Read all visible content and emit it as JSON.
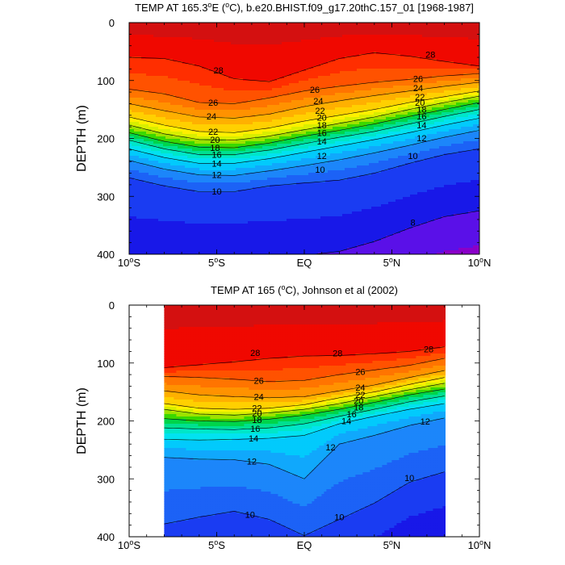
{
  "chart_data": [
    {
      "type": "contour",
      "title": "TEMP AT 165.3°E (°C), b.e20.BHIST.f09_g17.20thC.157_01 [1968-1987]",
      "title_parts": [
        "TEMP AT 165.3",
        "°",
        "E (",
        "°",
        "C), b.e20.BHIST.f09_g17.20thC.157_01 [1968-1987]"
      ],
      "ylabel": "DEPTH (m)",
      "xlim": [
        -10,
        10
      ],
      "ylim": [
        0,
        400
      ],
      "y_inverted": true,
      "x_ticks": [
        -10,
        -5,
        0,
        5,
        10
      ],
      "x_tick_labels": [
        "10°S",
        "5°S",
        "EQ",
        "5°N",
        "10°N"
      ],
      "y_ticks": [
        0,
        100,
        200,
        300,
        400
      ],
      "y_tick_labels": [
        "0",
        "100",
        "200",
        "300",
        "400"
      ],
      "data_extent_x": [
        -10,
        10
      ],
      "contour_levels": [
        7,
        8,
        9,
        10,
        11,
        12,
        13,
        14,
        15,
        16,
        17,
        18,
        19,
        20,
        21,
        22,
        23,
        24,
        25,
        26,
        27,
        28,
        29
      ],
      "isotherm_depths": {
        "x": [
          -10,
          -8,
          -6,
          -4,
          -2,
          0,
          2,
          4,
          6,
          8,
          10
        ],
        "levels": {
          "28": [
            60,
            62,
            75,
            97,
            102,
            82,
            62,
            52,
            58,
            67,
            75
          ],
          "26": [
            115,
            123,
            138,
            140,
            130,
            118,
            110,
            103,
            98,
            92,
            88
          ],
          "24": [
            140,
            152,
            163,
            165,
            158,
            145,
            135,
            126,
            118,
            110,
            103
          ],
          "22": [
            163,
            177,
            188,
            190,
            182,
            170,
            160,
            150,
            138,
            128,
            118
          ],
          "20": [
            177,
            192,
            202,
            203,
            196,
            185,
            174,
            163,
            150,
            138,
            127
          ],
          "18": [
            190,
            205,
            215,
            216,
            208,
            196,
            186,
            175,
            162,
            150,
            138
          ],
          "16": [
            203,
            218,
            228,
            228,
            220,
            209,
            198,
            188,
            175,
            162,
            150
          ],
          "14": [
            218,
            233,
            243,
            243,
            235,
            224,
            213,
            202,
            190,
            177,
            165
          ],
          "12": [
            238,
            253,
            263,
            264,
            256,
            247,
            237,
            225,
            212,
            198,
            186
          ],
          "10": [
            268,
            282,
            292,
            292,
            282,
            277,
            272,
            260,
            243,
            228,
            218
          ],
          "8": [
            402,
            402,
            402,
            402,
            402,
            402,
            395,
            378,
            355,
            335,
            325
          ]
        }
      },
      "contour_labels": [
        {
          "value": 28,
          "x": -4.9,
          "y": 82
        },
        {
          "value": 28,
          "x": 7.2,
          "y": 55
        },
        {
          "value": 26,
          "x": -5.2,
          "y": 138
        },
        {
          "value": 24,
          "x": -5.3,
          "y": 162
        },
        {
          "value": 22,
          "x": -5.2,
          "y": 188
        },
        {
          "value": 20,
          "x": -5.1,
          "y": 202
        },
        {
          "value": 18,
          "x": -5.1,
          "y": 216
        },
        {
          "value": 16,
          "x": -5.0,
          "y": 228
        },
        {
          "value": 14,
          "x": -5.0,
          "y": 243
        },
        {
          "value": 12,
          "x": -5.0,
          "y": 263
        },
        {
          "value": 10,
          "x": -5.0,
          "y": 291
        },
        {
          "value": 26,
          "x": 0.6,
          "y": 116
        },
        {
          "value": 24,
          "x": 0.8,
          "y": 135
        },
        {
          "value": 22,
          "x": 0.9,
          "y": 152
        },
        {
          "value": 20,
          "x": 1.0,
          "y": 164
        },
        {
          "value": 18,
          "x": 1.0,
          "y": 177
        },
        {
          "value": 16,
          "x": 1.0,
          "y": 190
        },
        {
          "value": 14,
          "x": 1.0,
          "y": 205
        },
        {
          "value": 12,
          "x": 1.0,
          "y": 230
        },
        {
          "value": 10,
          "x": 0.9,
          "y": 254
        },
        {
          "value": 26,
          "x": 6.5,
          "y": 97
        },
        {
          "value": 24,
          "x": 6.5,
          "y": 113
        },
        {
          "value": 22,
          "x": 6.6,
          "y": 128
        },
        {
          "value": 20,
          "x": 6.6,
          "y": 138
        },
        {
          "value": 18,
          "x": 6.7,
          "y": 150
        },
        {
          "value": 16,
          "x": 6.7,
          "y": 162
        },
        {
          "value": 14,
          "x": 6.7,
          "y": 177
        },
        {
          "value": 12,
          "x": 6.7,
          "y": 199
        },
        {
          "value": 10,
          "x": 6.2,
          "y": 230
        },
        {
          "value": 8,
          "x": 6.2,
          "y": 345
        }
      ]
    },
    {
      "type": "contour",
      "title": "TEMP AT 165 (°C), Johnson et al (2002)",
      "title_parts": [
        "TEMP AT 165 (",
        "°",
        "C), Johnson et al (2002)"
      ],
      "ylabel": "DEPTH (m)",
      "xlim": [
        -10,
        10
      ],
      "ylim": [
        0,
        400
      ],
      "y_inverted": true,
      "x_ticks": [
        -10,
        -5,
        0,
        5,
        10
      ],
      "x_tick_labels": [
        "10°S",
        "5°S",
        "EQ",
        "5°N",
        "10°N"
      ],
      "y_ticks": [
        0,
        100,
        200,
        300,
        400
      ],
      "y_tick_labels": [
        "0",
        "100",
        "200",
        "300",
        "400"
      ],
      "data_extent_x": [
        -8,
        8
      ],
      "contour_levels": [
        8,
        9,
        10,
        11,
        12,
        13,
        14,
        15,
        16,
        17,
        18,
        19,
        20,
        21,
        22,
        23,
        24,
        25,
        26,
        27,
        28,
        29
      ],
      "isotherm_depths": {
        "x": [
          -8,
          -6,
          -4,
          -2,
          0,
          2,
          4,
          6,
          8
        ],
        "levels": {
          "28": [
            108,
            103,
            98,
            92,
            88,
            87,
            84,
            80,
            72
          ],
          "26": [
            123,
            125,
            128,
            132,
            130,
            120,
            112,
            104,
            92
          ],
          "24": [
            148,
            155,
            158,
            160,
            158,
            148,
            138,
            125,
            113
          ],
          "22": [
            170,
            178,
            180,
            178,
            172,
            160,
            150,
            137,
            125
          ],
          "20": [
            180,
            188,
            190,
            186,
            180,
            170,
            158,
            146,
            135
          ],
          "18": [
            196,
            200,
            201,
            197,
            190,
            180,
            168,
            155,
            145
          ],
          "16": [
            212,
            214,
            215,
            212,
            205,
            192,
            180,
            167,
            157
          ],
          "14": [
            232,
            233,
            232,
            230,
            225,
            205,
            192,
            180,
            170
          ],
          "12": [
            263,
            266,
            267,
            275,
            300,
            240,
            225,
            208,
            195
          ],
          "10": [
            378,
            366,
            356,
            370,
            398,
            370,
            342,
            306,
            288
          ]
        }
      },
      "contour_labels": [
        {
          "value": 28,
          "x": -2.8,
          "y": 82
        },
        {
          "value": 28,
          "x": 1.9,
          "y": 83
        },
        {
          "value": 28,
          "x": 7.1,
          "y": 76
        },
        {
          "value": 26,
          "x": -2.6,
          "y": 130
        },
        {
          "value": 24,
          "x": -2.6,
          "y": 158
        },
        {
          "value": 22,
          "x": -2.7,
          "y": 178
        },
        {
          "value": 20,
          "x": -2.7,
          "y": 187
        },
        {
          "value": 18,
          "x": -2.7,
          "y": 198
        },
        {
          "value": 16,
          "x": -2.8,
          "y": 213
        },
        {
          "value": 14,
          "x": -2.9,
          "y": 230
        },
        {
          "value": 12,
          "x": -3.0,
          "y": 270
        },
        {
          "value": 26,
          "x": 3.2,
          "y": 115
        },
        {
          "value": 24,
          "x": 3.2,
          "y": 142
        },
        {
          "value": 22,
          "x": 3.2,
          "y": 155
        },
        {
          "value": 20,
          "x": 3.1,
          "y": 165
        },
        {
          "value": 18,
          "x": 3.1,
          "y": 176
        },
        {
          "value": 16,
          "x": 2.7,
          "y": 188
        },
        {
          "value": 14,
          "x": 2.4,
          "y": 200
        },
        {
          "value": 12,
          "x": 1.5,
          "y": 245
        },
        {
          "value": 12,
          "x": 6.9,
          "y": 201
        },
        {
          "value": 10,
          "x": 6.0,
          "y": 298
        },
        {
          "value": 10,
          "x": -3.1,
          "y": 362
        },
        {
          "value": 10,
          "x": 2.0,
          "y": 366
        }
      ]
    }
  ]
}
